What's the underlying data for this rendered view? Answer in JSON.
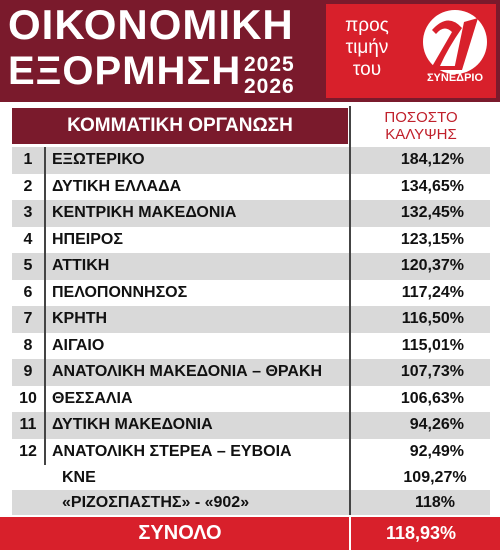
{
  "header": {
    "title_line1": "ΟΙΚΟΝΟΜΙΚΗ",
    "title_line2": "ΕΞΟΡΜΗΣΗ",
    "years": [
      "2025",
      "2026"
    ],
    "tribute": [
      "προς",
      "τιμήν",
      "του"
    ],
    "logo_text": "ΣΥΝΕΔΡΙΟ"
  },
  "table": {
    "columns": [
      "ΚΟΜΜΑΤΙΚΗ ΟΡΓΑΝΩΣΗ",
      [
        "ΠΟΣΟΣΤΟ",
        "ΚΑΛΥΨΗΣ"
      ]
    ],
    "rows": [
      [
        "1",
        "ΕΞΩΤΕΡΙΚΟ",
        "184,12%"
      ],
      [
        "2",
        "ΔΥΤΙΚΗ ΕΛΛΑΔΑ",
        "134,65%"
      ],
      [
        "3",
        "ΚΕΝΤΡΙΚΗ ΜΑΚΕΔΟΝΙΑ",
        "132,45%"
      ],
      [
        "4",
        "ΗΠΕΙΡΟΣ",
        "123,15%"
      ],
      [
        "5",
        "ΑΤΤΙΚΗ",
        "120,37%"
      ],
      [
        "6",
        "ΠΕΛΟΠΟΝΝΗΣΟΣ",
        "117,24%"
      ],
      [
        "7",
        "ΚΡΗΤΗ",
        "116,50%"
      ],
      [
        "8",
        "ΑΙΓΑΙΟ",
        "115,01%"
      ],
      [
        "9",
        "ΑΝΑΤΟΛΙΚΗ ΜΑΚΕΔΟΝΙΑ – ΘΡΑΚΗ",
        "107,73%"
      ],
      [
        "10",
        "ΘΕΣΣΑΛΙΑ",
        "106,63%"
      ],
      [
        "11",
        "ΔΥΤΙΚΗ ΜΑΚΕΔΟΝΙΑ",
        "94,26%"
      ],
      [
        "12",
        "ΑΝΑΤΟΛΙΚΗ ΣΤΕΡΕΑ – ΕΥΒΟΙΑ",
        "92,49%"
      ]
    ],
    "extra_rows": [
      [
        "ΚΝΕ",
        "109,27%"
      ],
      [
        "«ΡΙΖΟΣΠΑΣΤΗΣ» - «902»",
        "118%"
      ]
    ],
    "total": {
      "label": "ΣΥΝΟΛΟ",
      "value": "118,93%"
    }
  }
}
